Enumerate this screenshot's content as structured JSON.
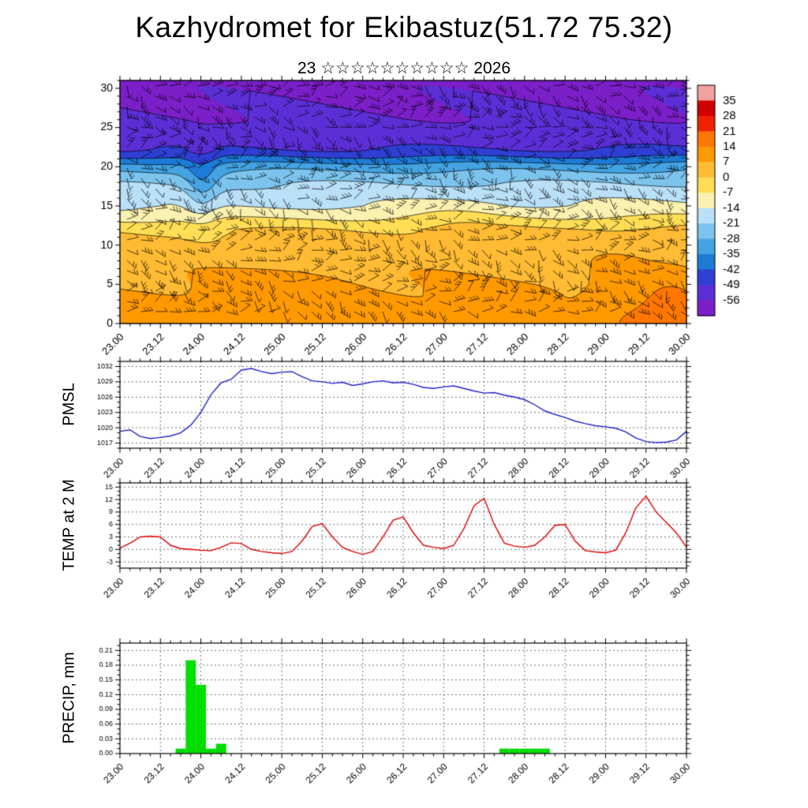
{
  "title": "Kazhydromet for Ekibastuz(51.72 75.32)",
  "subtitle": {
    "day": "23",
    "stars": "☆☆☆☆☆☆☆☆☆☆",
    "year": "2026"
  },
  "x_axis": {
    "labels": [
      "23.00",
      "23.12",
      "24.00",
      "24.12",
      "25.00",
      "25.12",
      "26.00",
      "26.12",
      "27.00",
      "27.12",
      "28.00",
      "28.12",
      "29.00",
      "29.12",
      "30.00"
    ],
    "minor_hours": 3,
    "major_hours": 12
  },
  "chart_data": [
    {
      "type": "heatmap",
      "name": "temperature-height-cross-section-with-wind-barbs",
      "y_ticks": [
        0,
        5,
        10,
        15,
        20,
        25,
        30
      ],
      "ylim": [
        0,
        31
      ],
      "colorbar": {
        "labels": [
          35,
          28,
          21,
          14,
          7,
          0,
          -7,
          -14,
          -21,
          -28,
          -35,
          -42,
          -49,
          -56
        ],
        "colors": [
          "#f2a0a0",
          "#d00000",
          "#ee2200",
          "#ff7700",
          "#ff9900",
          "#ffbb33",
          "#ffdd55",
          "#faf0b0",
          "#b9e0f7",
          "#7cc4ee",
          "#44a3e2",
          "#1d7bd6",
          "#2f3fd3",
          "#5c2fd6",
          "#7b1fc8"
        ]
      },
      "field": {
        "profile": [
          [
            0,
            11
          ],
          [
            4,
            8
          ],
          [
            8,
            4
          ],
          [
            11,
            1
          ],
          [
            12,
            -1
          ],
          [
            13,
            -6
          ],
          [
            14,
            -11
          ],
          [
            15,
            -15
          ],
          [
            16,
            -17
          ],
          [
            18,
            -22
          ],
          [
            19,
            -26
          ],
          [
            20,
            -31
          ],
          [
            21,
            -40
          ],
          [
            22,
            -48
          ],
          [
            23,
            -51
          ],
          [
            26,
            -55
          ],
          [
            31,
            -58
          ]
        ],
        "anomalies": [
          {
            "u": 0.145,
            "h": 18,
            "du": 0.028,
            "dh": 4.5,
            "amp": -10
          },
          {
            "u": 0.97,
            "h": 2,
            "du": 0.06,
            "dh": 4,
            "amp": 9
          },
          {
            "u": 0.88,
            "h": 5,
            "du": 0.05,
            "dh": 3.5,
            "amp": 5
          },
          {
            "u": 0.3,
            "h": 4,
            "du": 0.12,
            "dh": 4,
            "amp": 4
          },
          {
            "u": 0.6,
            "h": 14,
            "du": 0.08,
            "dh": 2.5,
            "amp": 3
          },
          {
            "u": 0.79,
            "h": 1.5,
            "du": 0.05,
            "dh": 2.5,
            "amp": -4
          }
        ],
        "wave": {
          "amp": 1.6,
          "kx": 16,
          "kh": 0.8
        },
        "tilt": 2.5
      },
      "wind_barbs": {
        "cols": 40,
        "rows": 23
      }
    },
    {
      "type": "line",
      "ylabel": "PMSL",
      "color": "#2222cc",
      "y_ticks": [
        1017,
        1020,
        1023,
        1026,
        1029,
        1032
      ],
      "y_minor": 1,
      "ylim": [
        1016,
        1033
      ],
      "values": [
        1019.3,
        1019.6,
        1018.3,
        1017.9,
        1018.1,
        1018.4,
        1019.0,
        1020.5,
        1023.0,
        1026.5,
        1028.8,
        1029.5,
        1031.3,
        1031.6,
        1031.0,
        1030.6,
        1030.9,
        1031.0,
        1030.0,
        1029.2,
        1029.0,
        1028.7,
        1028.9,
        1028.3,
        1028.6,
        1029.0,
        1029.2,
        1028.8,
        1028.9,
        1028.5,
        1027.9,
        1027.7,
        1028.0,
        1028.2,
        1027.7,
        1027.2,
        1026.8,
        1026.9,
        1026.4,
        1026.0,
        1025.5,
        1024.5,
        1023.3,
        1022.6,
        1022.0,
        1021.3,
        1020.8,
        1020.4,
        1020.2,
        1019.9,
        1019.2,
        1018.0,
        1017.3,
        1017.1,
        1017.2,
        1017.6,
        1019.3
      ]
    },
    {
      "type": "line",
      "ylabel": "TEMP at 2 M",
      "color": "#dd0000",
      "y_ticks": [
        -3,
        0,
        3,
        6,
        9,
        12,
        15
      ],
      "y_minor": 1,
      "ylim": [
        -4.5,
        16
      ],
      "values": [
        0.3,
        1.5,
        3.0,
        3.2,
        3.0,
        1.0,
        0.2,
        0.0,
        -0.2,
        -0.3,
        0.5,
        1.6,
        1.4,
        0.0,
        -0.5,
        -0.8,
        -1.0,
        -0.5,
        2.0,
        5.5,
        6.2,
        3.0,
        0.5,
        -0.5,
        -1.2,
        -0.5,
        3.0,
        7.0,
        7.8,
        4.0,
        1.0,
        0.5,
        0.2,
        1.0,
        5.0,
        10.5,
        12.3,
        6.0,
        1.5,
        0.8,
        0.5,
        1.0,
        3.0,
        5.8,
        6.0,
        2.0,
        -0.3,
        -0.6,
        -0.8,
        -0.2,
        4.0,
        10.0,
        12.8,
        9.0,
        6.5,
        4.0,
        0.5
      ]
    },
    {
      "type": "bar",
      "ylabel": "PRECIP, mm",
      "color": "#00dd00",
      "y_ticks": [
        0,
        0.03,
        0.06,
        0.09,
        0.12,
        0.15,
        0.18,
        0.21
      ],
      "y_minor": 0.01,
      "ylim": [
        0,
        0.225
      ],
      "values": [
        0,
        0,
        0,
        0,
        0,
        0,
        0.01,
        0.19,
        0.14,
        0.01,
        0.02,
        0,
        0,
        0,
        0,
        0,
        0,
        0,
        0,
        0,
        0,
        0,
        0,
        0,
        0,
        0,
        0,
        0,
        0,
        0,
        0,
        0,
        0,
        0,
        0,
        0,
        0,
        0,
        0.01,
        0.01,
        0.01,
        0.01,
        0.01,
        0,
        0,
        0,
        0,
        0,
        0,
        0,
        0,
        0,
        0,
        0,
        0,
        0,
        0
      ]
    }
  ]
}
